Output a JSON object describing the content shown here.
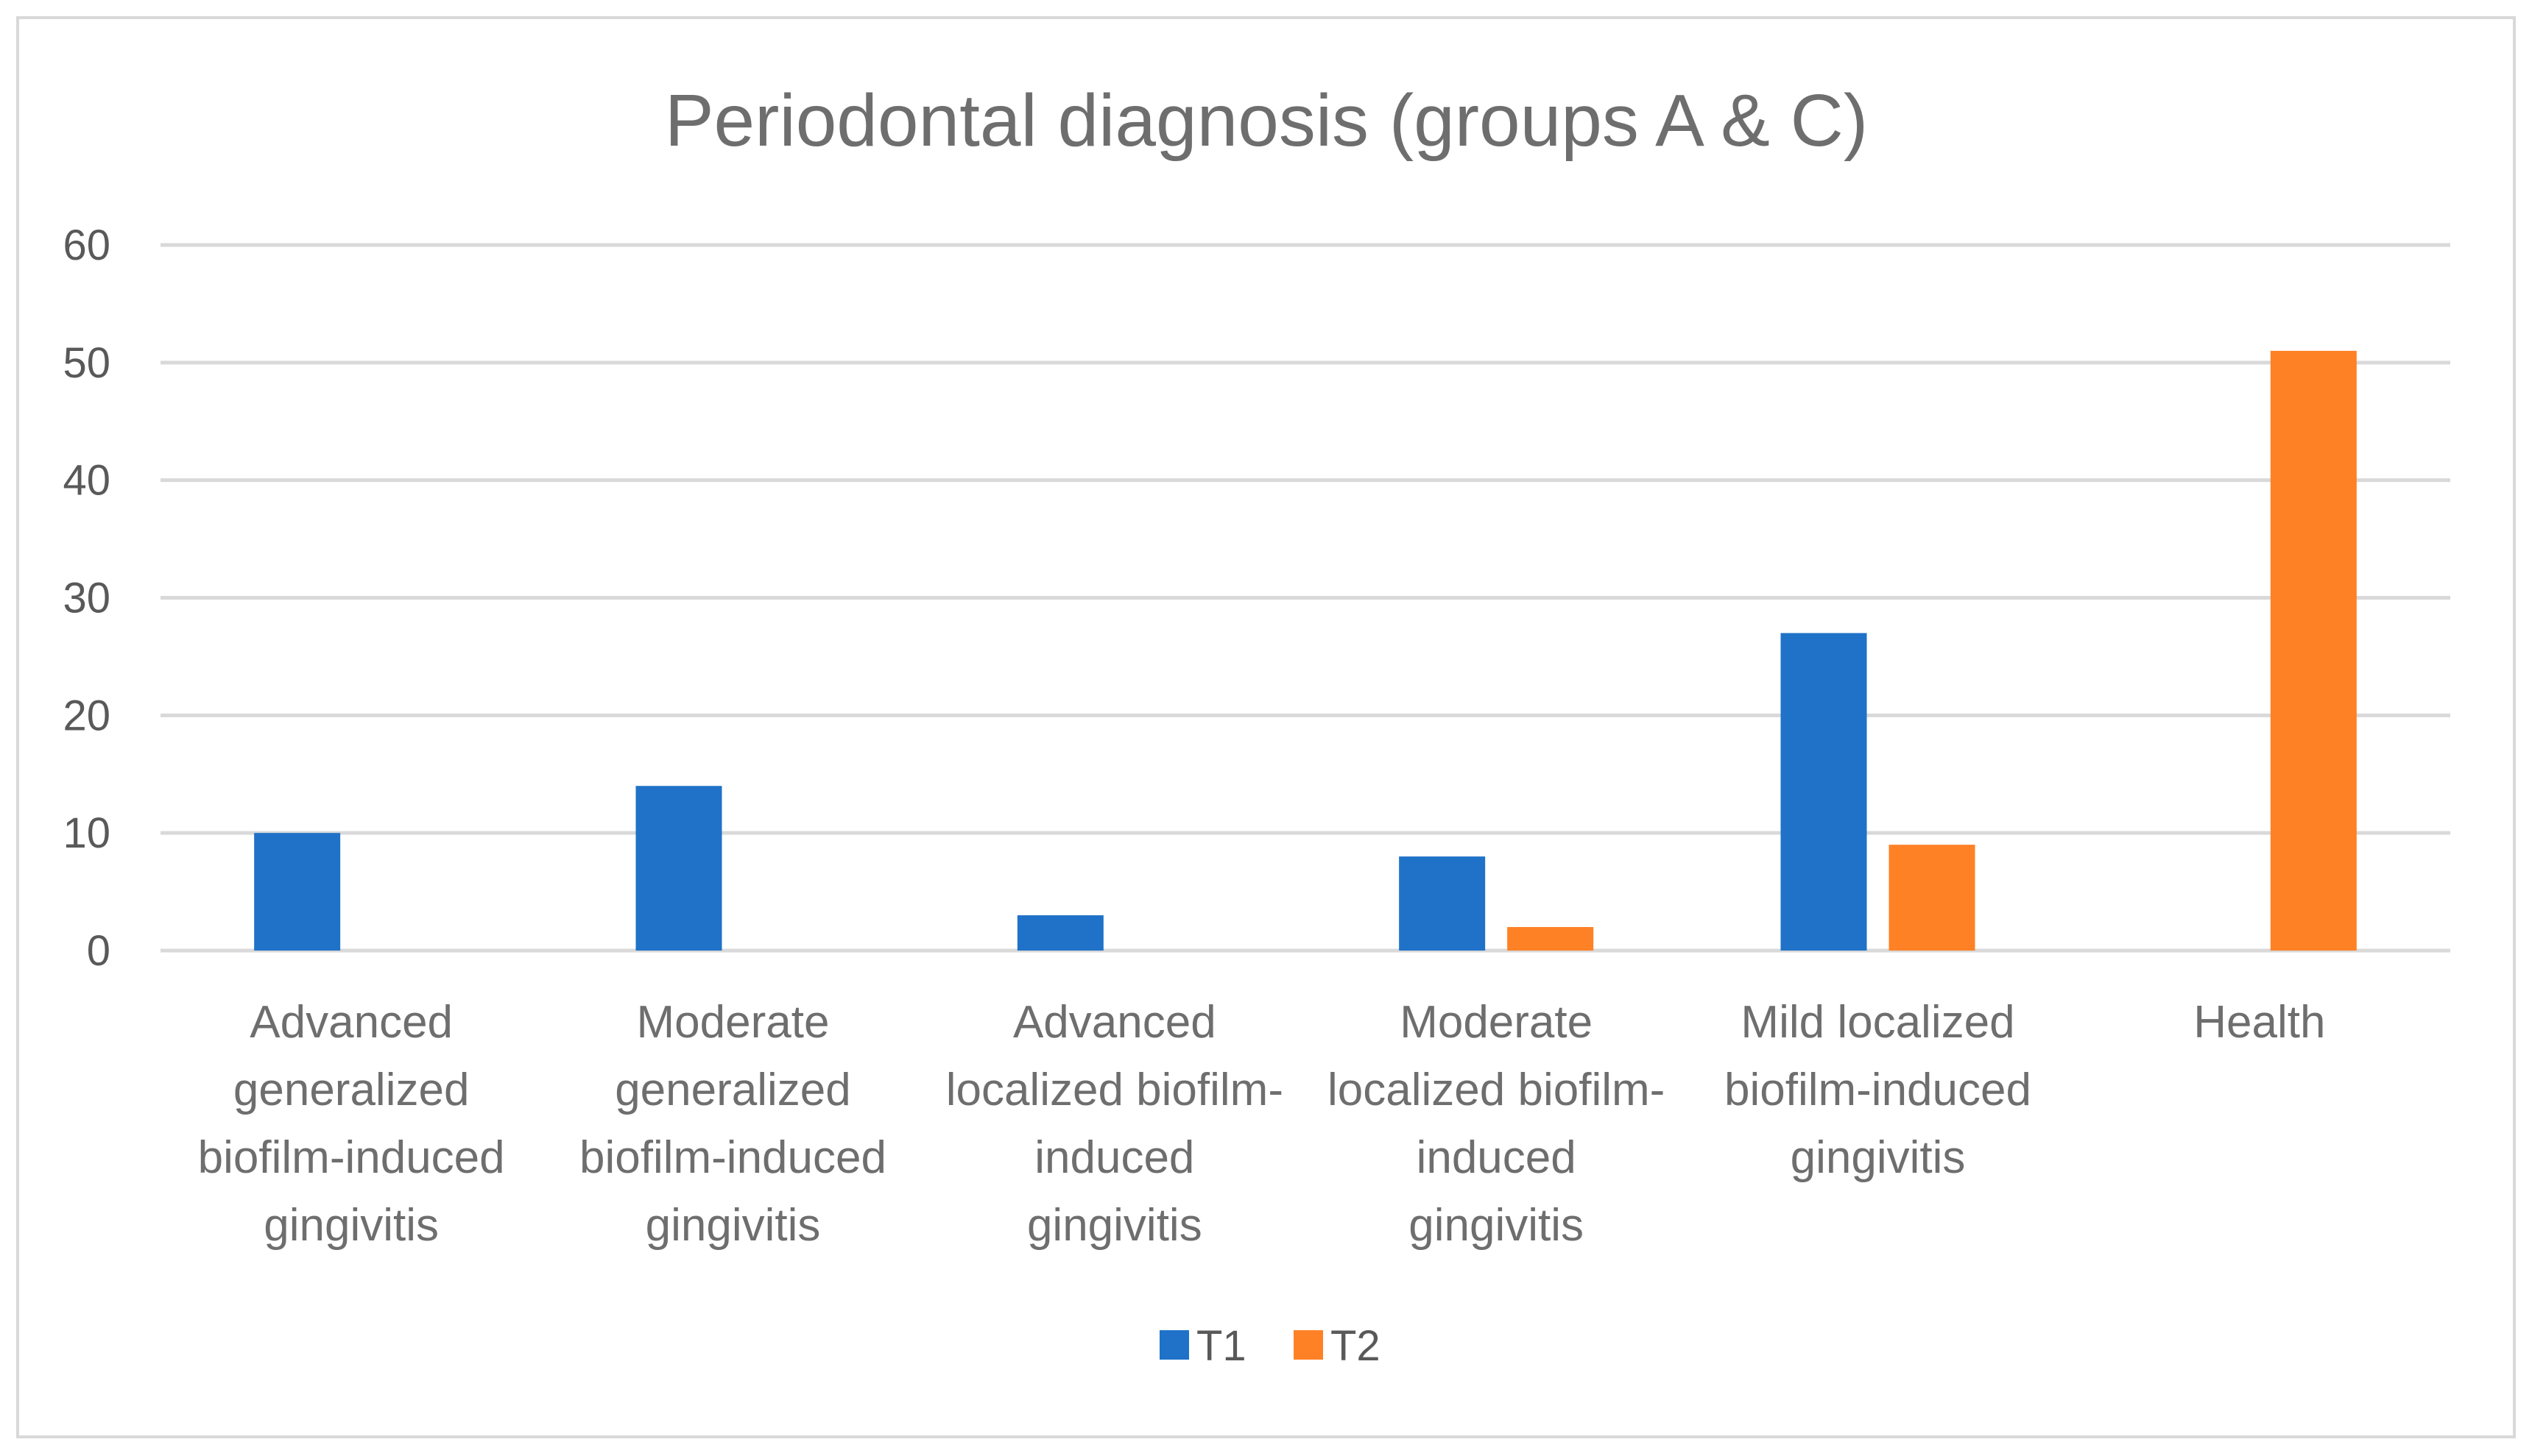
{
  "chart_data": {
    "type": "bar",
    "title": "Periodontal diagnosis (groups A & C)",
    "xlabel": "",
    "ylabel": "",
    "ylim": [
      0,
      60
    ],
    "yticks": [
      0,
      10,
      20,
      30,
      40,
      50,
      60
    ],
    "grid": true,
    "legend_position": "bottom",
    "categories": [
      [
        "Advanced",
        "generalized",
        "biofilm-induced",
        "gingivitis"
      ],
      [
        "Moderate",
        "generalized",
        "biofilm-induced",
        "gingivitis"
      ],
      [
        "Advanced",
        "localized biofilm-",
        "induced",
        "gingivitis"
      ],
      [
        "Moderate",
        "localized biofilm-",
        "induced",
        "gingivitis"
      ],
      [
        "Mild localized",
        "biofilm-induced",
        "gingivitis"
      ],
      [
        "Health"
      ]
    ],
    "series": [
      {
        "name": "T1",
        "color": "#1F72C8",
        "values": [
          10,
          14,
          3,
          8,
          27,
          0
        ]
      },
      {
        "name": "T2",
        "color": "#FF8125",
        "values": [
          0,
          0,
          0,
          2,
          9,
          51
        ]
      }
    ]
  },
  "colors": {
    "gridline": "#d9d9d9",
    "frame": "#d9d9d9"
  }
}
